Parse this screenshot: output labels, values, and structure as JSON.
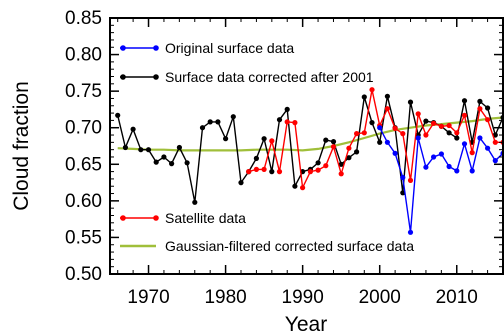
{
  "chart_data": {
    "type": "line",
    "xlabel": "Year",
    "ylabel": "Cloud fraction",
    "xlim": [
      1965,
      2016
    ],
    "ylim": [
      0.5,
      0.85
    ],
    "x_ticks": [
      1970,
      1980,
      1990,
      2000,
      2010
    ],
    "y_ticks": [
      0.5,
      0.55,
      0.6,
      0.65,
      0.7,
      0.75,
      0.8,
      0.85
    ],
    "legend_position": "inside, stacked top-left and bottom-left",
    "grid": false,
    "series": [
      {
        "name": "Original surface data",
        "color": "#0000ff",
        "marker": "dot",
        "x": [
          2000,
          2001,
          2002,
          2003,
          2004,
          2005,
          2006,
          2007,
          2008,
          2009,
          2010,
          2011,
          2012,
          2013,
          2014,
          2015,
          2016
        ],
        "y": [
          0.7,
          0.68,
          0.665,
          0.632,
          0.557,
          0.686,
          0.646,
          0.66,
          0.664,
          0.647,
          0.641,
          0.678,
          0.641,
          0.686,
          0.672,
          0.655,
          0.665
        ]
      },
      {
        "name": "Surface data corrected after 2001",
        "color": "#000000",
        "marker": "dot",
        "x": [
          1966,
          1967,
          1968,
          1969,
          1970,
          1971,
          1972,
          1973,
          1974,
          1975,
          1976,
          1977,
          1978,
          1979,
          1980,
          1981,
          1982,
          1983,
          1984,
          1985,
          1986,
          1987,
          1988,
          1989,
          1990,
          1991,
          1992,
          1993,
          1994,
          1995,
          1996,
          1997,
          1998,
          1999,
          2000,
          2001,
          2002,
          2003,
          2004,
          2005,
          2006,
          2007,
          2008,
          2009,
          2010,
          2011,
          2012,
          2013,
          2014,
          2015,
          2016
        ],
        "y": [
          0.717,
          0.673,
          0.698,
          0.67,
          0.67,
          0.653,
          0.66,
          0.651,
          0.673,
          0.652,
          0.598,
          0.7,
          0.708,
          0.708,
          0.685,
          0.715,
          0.625,
          0.64,
          0.658,
          0.685,
          0.64,
          0.711,
          0.725,
          0.62,
          0.64,
          0.643,
          0.652,
          0.683,
          0.681,
          0.65,
          0.659,
          0.667,
          0.742,
          0.707,
          0.68,
          0.743,
          0.7,
          0.611,
          0.735,
          0.69,
          0.709,
          0.707,
          0.702,
          0.693,
          0.686,
          0.737,
          0.68,
          0.736,
          0.727,
          0.69,
          0.714
        ]
      },
      {
        "name": "Satellite data",
        "color": "#ff0000",
        "marker": "dot",
        "x": [
          1983,
          1984,
          1985,
          1986,
          1987,
          1988,
          1989,
          1990,
          1991,
          1992,
          1993,
          1994,
          1995,
          1996,
          1997,
          1998,
          1999,
          2000,
          2001,
          2002,
          2003,
          2004,
          2005,
          2006,
          2007,
          2008,
          2009,
          2010,
          2011,
          2012,
          2013,
          2014,
          2015,
          2016
        ],
        "y": [
          0.64,
          0.643,
          0.643,
          0.682,
          0.64,
          0.708,
          0.707,
          0.618,
          0.64,
          0.642,
          0.648,
          0.674,
          0.637,
          0.672,
          0.692,
          0.693,
          0.752,
          0.703,
          0.726,
          0.699,
          0.692,
          0.628,
          0.719,
          0.69,
          0.706,
          0.702,
          0.703,
          0.693,
          0.717,
          0.666,
          0.726,
          0.711,
          0.68,
          0.68
        ]
      },
      {
        "name": "Gaussian-filtered corrected surface data",
        "color": "#a0bf3a",
        "marker": "none",
        "x": [
          1966,
          1968,
          1970,
          1972,
          1974,
          1976,
          1978,
          1980,
          1982,
          1984,
          1986,
          1988,
          1990,
          1992,
          1994,
          1996,
          1998,
          2000,
          2002,
          2004,
          2006,
          2008,
          2010,
          2012,
          2014,
          2016
        ],
        "y": [
          0.672,
          0.671,
          0.67,
          0.67,
          0.669,
          0.669,
          0.669,
          0.669,
          0.669,
          0.67,
          0.67,
          0.67,
          0.669,
          0.671,
          0.675,
          0.68,
          0.686,
          0.692,
          0.697,
          0.7,
          0.703,
          0.705,
          0.707,
          0.709,
          0.712,
          0.714
        ]
      }
    ]
  }
}
